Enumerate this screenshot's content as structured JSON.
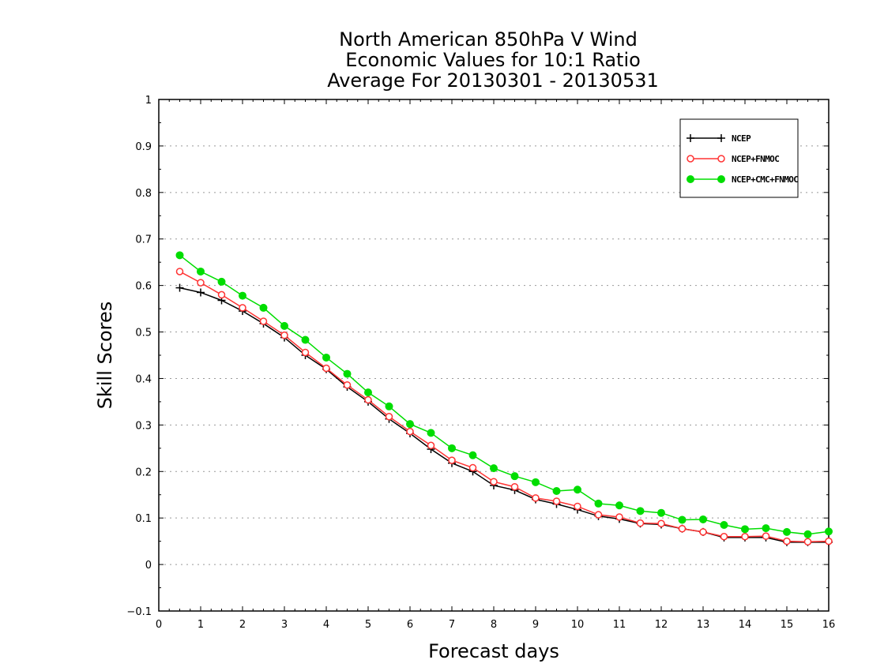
{
  "chart_data": {
    "type": "line",
    "title_lines": [
      "North American 850hPa V Wind",
      "Economic Values for 10:1 Ratio",
      "Average For 20130301 - 20130531"
    ],
    "xlabel": "Forecast days",
    "ylabel": "Skill Scores",
    "xlim": [
      0,
      16
    ],
    "ylim": [
      -0.1,
      1
    ],
    "xticks": [
      0,
      1,
      2,
      3,
      4,
      5,
      6,
      7,
      8,
      9,
      10,
      11,
      12,
      13,
      14,
      15,
      16
    ],
    "yticks": [
      -0.1,
      0,
      0.1,
      0.2,
      0.3,
      0.4,
      0.5,
      0.6,
      0.7,
      0.8,
      0.9,
      1
    ],
    "ytick_labels": [
      "−0.1",
      "0",
      "0.1",
      "0.2",
      "0.3",
      "0.4",
      "0.5",
      "0.6",
      "0.7",
      "0.8",
      "0.9",
      "1"
    ],
    "grid": "horizontal-dotted",
    "legend_position": "top-right",
    "x": [
      0.5,
      1,
      1.5,
      2,
      2.5,
      3,
      3.5,
      4,
      4.5,
      5,
      5.5,
      6,
      6.5,
      7,
      7.5,
      8,
      8.5,
      9,
      9.5,
      10,
      10.5,
      11,
      11.5,
      12,
      12.5,
      13,
      13.5,
      14,
      14.5,
      15,
      15.5,
      16
    ],
    "series": [
      {
        "name": "NCEP",
        "color": "#000000",
        "marker": "plus",
        "values": [
          0.595,
          0.585,
          0.568,
          0.545,
          0.518,
          0.488,
          0.45,
          0.42,
          0.382,
          0.35,
          0.313,
          0.282,
          0.248,
          0.218,
          0.2,
          0.17,
          0.16,
          0.14,
          0.13,
          0.118,
          0.104,
          0.098,
          0.088,
          0.086,
          0.077,
          0.07,
          0.058,
          0.058,
          0.058,
          0.048,
          0.048,
          0.048
        ]
      },
      {
        "name": "NCEP+FNMOC",
        "color": "#ff3333",
        "marker": "open-circle",
        "values": [
          0.63,
          0.606,
          0.58,
          0.552,
          0.523,
          0.493,
          0.456,
          0.422,
          0.386,
          0.354,
          0.318,
          0.286,
          0.256,
          0.224,
          0.208,
          0.178,
          0.167,
          0.143,
          0.136,
          0.125,
          0.107,
          0.102,
          0.089,
          0.088,
          0.077,
          0.07,
          0.06,
          0.06,
          0.061,
          0.05,
          0.049,
          0.05
        ]
      },
      {
        "name": "NCEP+CMC+FNMOC",
        "color": "#00dd00",
        "marker": "filled-circle",
        "values": [
          0.665,
          0.63,
          0.608,
          0.578,
          0.552,
          0.513,
          0.483,
          0.445,
          0.41,
          0.37,
          0.34,
          0.302,
          0.283,
          0.25,
          0.235,
          0.207,
          0.19,
          0.177,
          0.158,
          0.161,
          0.131,
          0.127,
          0.115,
          0.111,
          0.096,
          0.097,
          0.085,
          0.076,
          0.078,
          0.07,
          0.065,
          0.071
        ]
      }
    ]
  }
}
